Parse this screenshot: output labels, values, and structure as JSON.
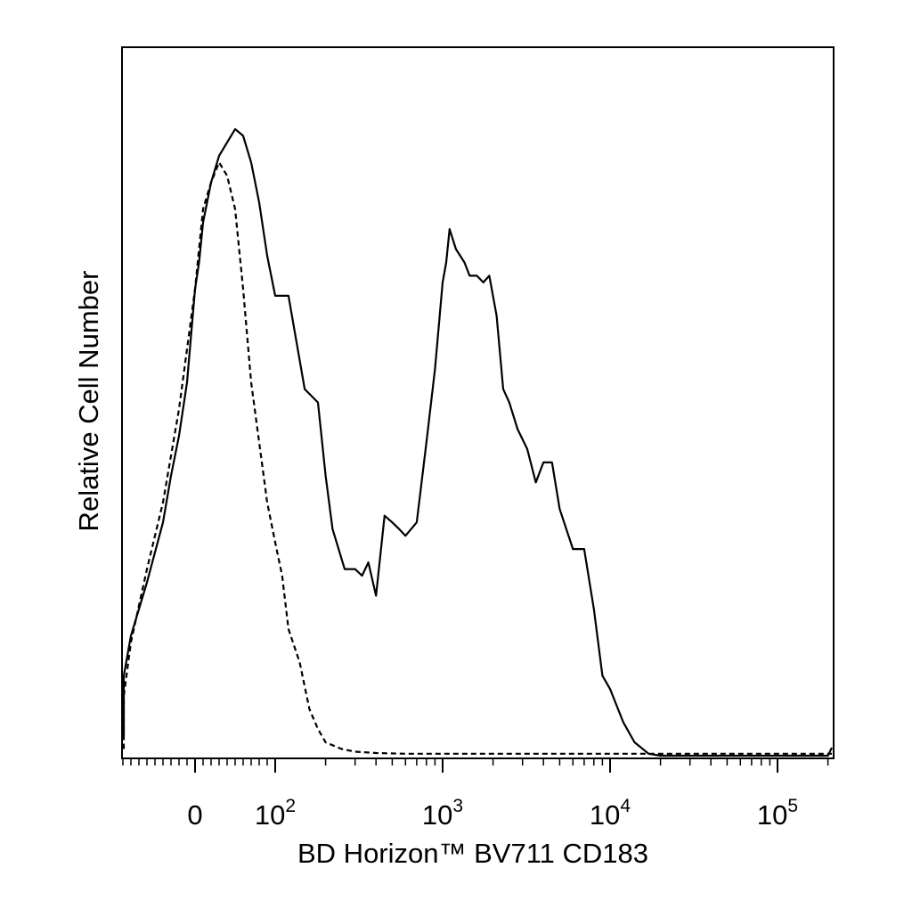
{
  "chart_data": {
    "type": "line",
    "title": "",
    "xlabel": "BD Horizon™ BV711 CD183",
    "ylabel": "Relative Cell Number",
    "x_scale": "biexponential",
    "xlim": [
      -150,
      250000
    ],
    "ylim": [
      0,
      100
    ],
    "grid": false,
    "legend": "none",
    "x_ticks": [
      {
        "value": 0,
        "base": "0",
        "exponent": ""
      },
      {
        "value": 100,
        "base": "10",
        "exponent": "2"
      },
      {
        "value": 1000,
        "base": "10",
        "exponent": "3"
      },
      {
        "value": 10000,
        "base": "10",
        "exponent": "4"
      },
      {
        "value": 100000,
        "base": "10",
        "exponent": "5"
      }
    ],
    "series": [
      {
        "style": "solid",
        "color": "#000000",
        "x": [
          -150,
          -140,
          -120,
          -100,
          -80,
          -60,
          -40,
          -30,
          -20,
          -10,
          0,
          5,
          10,
          20,
          30,
          40,
          50,
          60,
          70,
          80,
          90,
          100,
          120,
          150,
          180,
          200,
          220,
          260,
          300,
          330,
          360,
          400,
          450,
          500,
          550,
          600,
          700,
          800,
          900,
          1000,
          1050,
          1100,
          1200,
          1350,
          1450,
          1600,
          1750,
          1900,
          2100,
          2300,
          2500,
          2800,
          3200,
          3600,
          4000,
          4500,
          5000,
          6000,
          7000,
          8000,
          9000,
          10000,
          12000,
          14000,
          17000,
          20000,
          30000,
          50000,
          100000,
          200000,
          250000
        ],
        "values": [
          3,
          5,
          8,
          12,
          18,
          26,
          35,
          42,
          48,
          56,
          70,
          74,
          80,
          86,
          90,
          92,
          94,
          93,
          89,
          83,
          75,
          69,
          69,
          55,
          53,
          42,
          34,
          28,
          28,
          27,
          29,
          24,
          36,
          35,
          34,
          33,
          35,
          47,
          58,
          71,
          74,
          79,
          76,
          74,
          72,
          72,
          71,
          72,
          66,
          55,
          53,
          49,
          46,
          41,
          44,
          44,
          37,
          31,
          31,
          22,
          12,
          10,
          5,
          2,
          0.3,
          0,
          0,
          0,
          0,
          0,
          1.2
        ]
      },
      {
        "style": "dashed",
        "color": "#000000",
        "x": [
          -150,
          -140,
          -120,
          -100,
          -80,
          -60,
          -40,
          -30,
          -20,
          -10,
          0,
          5,
          10,
          20,
          30,
          40,
          50,
          60,
          70,
          80,
          90,
          100,
          110,
          120,
          140,
          160,
          180,
          200,
          250,
          300,
          400,
          600,
          1000,
          10000,
          250000
        ],
        "values": [
          1,
          2,
          5,
          9,
          17,
          28,
          38,
          45,
          52,
          61,
          70,
          76,
          82,
          86,
          89,
          87,
          82,
          70,
          56,
          47,
          38,
          32,
          27,
          19,
          14,
          7,
          4,
          2,
          1,
          0.6,
          0.4,
          0.3,
          0.3,
          0.3,
          0.3
        ]
      }
    ]
  }
}
